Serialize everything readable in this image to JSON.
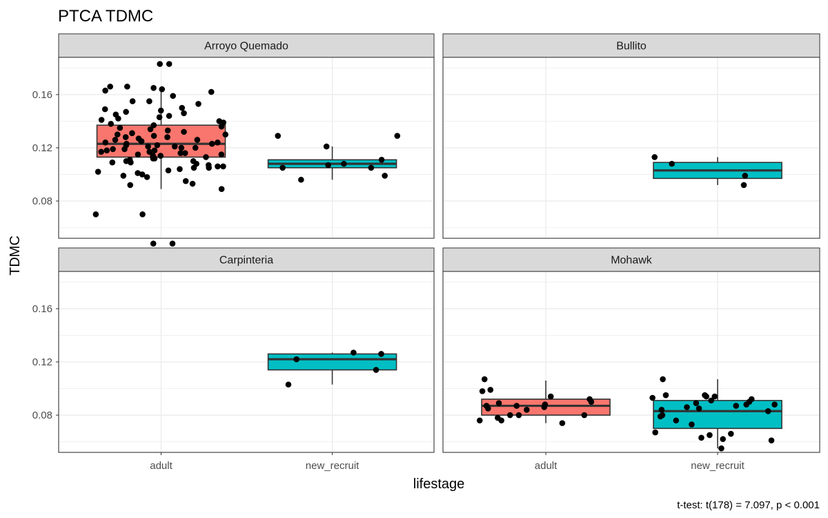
{
  "chart_data": {
    "type": "boxplot",
    "title": "PTCA TDMC",
    "xlabel": "lifestage",
    "ylabel": "TDMC",
    "caption": "t-test: t(178) = 7.097, p < 0.001",
    "categories": [
      "adult",
      "new_recruit"
    ],
    "y_ticks": [
      0.08,
      0.12,
      0.16
    ],
    "y_tick_labels": [
      "0.08",
      "0.12",
      "0.16"
    ],
    "ylim": [
      0.052,
      0.188
    ],
    "grid": true,
    "legend": "none",
    "colors": {
      "adult": "#F8766D",
      "new_recruit": "#00BFC4"
    },
    "panels": [
      {
        "name": "Arroyo Quemado",
        "boxes": [
          {
            "category": "adult",
            "lower_whisker": 0.089,
            "q1": 0.113,
            "median": 0.123,
            "q3": 0.137,
            "upper_whisker": 0.166,
            "points": [
              0.183,
              0.183,
              0.166,
              0.166,
              0.165,
              0.164,
              0.163,
              0.162,
              0.159,
              0.155,
              0.155,
              0.153,
              0.15,
              0.149,
              0.148,
              0.147,
              0.146,
              0.145,
              0.144,
              0.143,
              0.142,
              0.141,
              0.14,
              0.139,
              0.138,
              0.137,
              0.136,
              0.135,
              0.134,
              0.133,
              0.132,
              0.131,
              0.13,
              0.13,
              0.129,
              0.128,
              0.128,
              0.127,
              0.126,
              0.126,
              0.125,
              0.125,
              0.124,
              0.124,
              0.123,
              0.123,
              0.122,
              0.122,
              0.121,
              0.121,
              0.12,
              0.12,
              0.119,
              0.119,
              0.118,
              0.118,
              0.117,
              0.117,
              0.116,
              0.116,
              0.115,
              0.115,
              0.114,
              0.114,
              0.113,
              0.113,
              0.112,
              0.112,
              0.111,
              0.11,
              0.11,
              0.109,
              0.109,
              0.108,
              0.107,
              0.106,
              0.106,
              0.105,
              0.105,
              0.104,
              0.103,
              0.102,
              0.101,
              0.1,
              0.099,
              0.098,
              0.095,
              0.093,
              0.092,
              0.089,
              0.07,
              0.07,
              0.048,
              0.048
            ]
          },
          {
            "category": "new_recruit",
            "lower_whisker": 0.096,
            "q1": 0.105,
            "median": 0.108,
            "q3": 0.111,
            "upper_whisker": 0.121,
            "points": [
              0.129,
              0.129,
              0.121,
              0.111,
              0.108,
              0.107,
              0.105,
              0.105,
              0.099,
              0.096
            ]
          }
        ]
      },
      {
        "name": "Bullito",
        "boxes": [
          {
            "category": "new_recruit",
            "lower_whisker": 0.092,
            "q1": 0.097,
            "median": 0.103,
            "q3": 0.109,
            "upper_whisker": 0.113,
            "points": [
              0.113,
              0.108,
              0.099,
              0.092
            ]
          }
        ]
      },
      {
        "name": "Carpinteria",
        "boxes": [
          {
            "category": "new_recruit",
            "lower_whisker": 0.103,
            "q1": 0.114,
            "median": 0.122,
            "q3": 0.126,
            "upper_whisker": 0.127,
            "points": [
              0.127,
              0.126,
              0.122,
              0.114,
              0.103
            ]
          }
        ]
      },
      {
        "name": "Mohawk",
        "boxes": [
          {
            "category": "adult",
            "lower_whisker": 0.074,
            "q1": 0.08,
            "median": 0.087,
            "q3": 0.092,
            "upper_whisker": 0.106,
            "points": [
              0.107,
              0.099,
              0.098,
              0.094,
              0.092,
              0.09,
              0.089,
              0.088,
              0.087,
              0.087,
              0.086,
              0.085,
              0.084,
              0.08,
              0.08,
              0.08,
              0.078,
              0.076,
              0.076,
              0.074
            ]
          },
          {
            "category": "new_recruit",
            "lower_whisker": 0.055,
            "q1": 0.07,
            "median": 0.083,
            "q3": 0.091,
            "upper_whisker": 0.107,
            "points": [
              0.107,
              0.095,
              0.095,
              0.094,
              0.094,
              0.093,
              0.092,
              0.091,
              0.09,
              0.089,
              0.088,
              0.088,
              0.087,
              0.086,
              0.085,
              0.084,
              0.083,
              0.08,
              0.079,
              0.076,
              0.073,
              0.067,
              0.066,
              0.065,
              0.063,
              0.062,
              0.061,
              0.055
            ]
          }
        ]
      }
    ]
  }
}
